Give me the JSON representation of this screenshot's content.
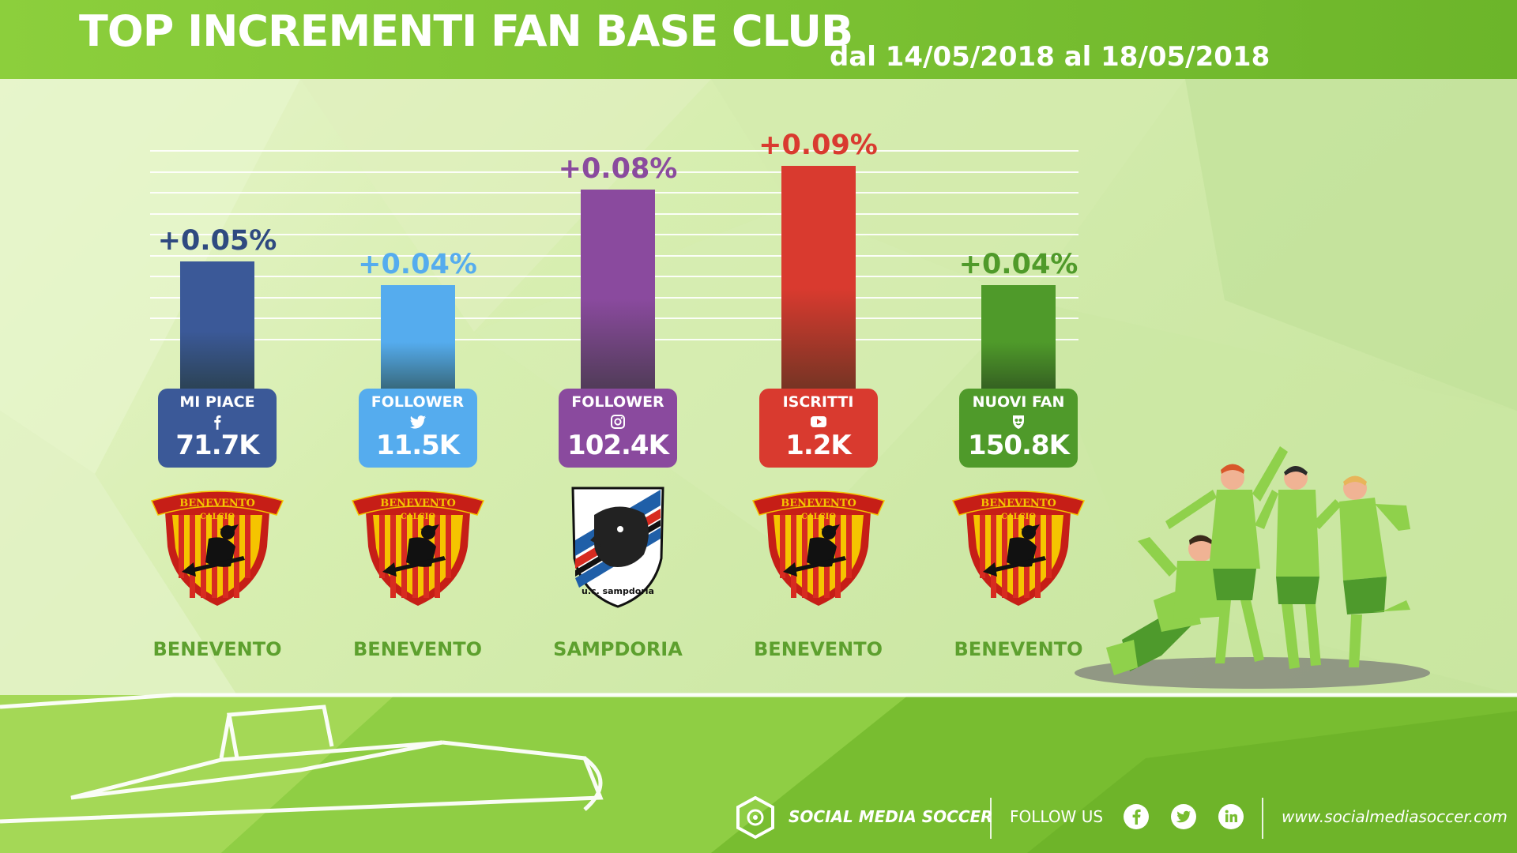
{
  "header": {
    "title": "TOP INCREMENTI FAN BASE CLUB",
    "subtitle": "dal 14/05/2018 al 18/05/2018"
  },
  "chart_data": {
    "type": "bar",
    "categories": [
      "MI PIACE",
      "FOLLOWER",
      "FOLLOWER",
      "ISCRITTI",
      "NUOVI FAN"
    ],
    "values": [
      0.05,
      0.04,
      0.08,
      0.09,
      0.04
    ],
    "value_labels": [
      "+0.05%",
      "+0.04%",
      "+0.08%",
      "+0.09%",
      "+0.04%"
    ],
    "platform_icons": [
      "facebook-icon",
      "twitter-icon",
      "instagram-icon",
      "youtube-icon",
      "app-icon"
    ],
    "totals": [
      "71.7K",
      "11.5K",
      "102.4K",
      "1.2K",
      "150.8K"
    ],
    "clubs": [
      "BENEVENTO",
      "BENEVENTO",
      "SAMPDORIA",
      "BENEVENTO",
      "BENEVENTO"
    ],
    "crests": [
      "benevento-crest",
      "benevento-crest",
      "sampdoria-crest",
      "benevento-crest",
      "benevento-crest"
    ],
    "colors": [
      "#3b5998",
      "#55acee",
      "#8a4a9e",
      "#d93a2f",
      "#4f9a2a"
    ],
    "label_colors": [
      "#2f4a80",
      "#55acee",
      "#8a4a9e",
      "#d93a2f",
      "#4f9a2a"
    ],
    "ylim": [
      0,
      0.1
    ],
    "grid": true
  },
  "footer": {
    "brand": "SOCIAL MEDIA SOCCER",
    "follow": "FOLLOW US",
    "website": "www.socialmediasoccer.com"
  }
}
